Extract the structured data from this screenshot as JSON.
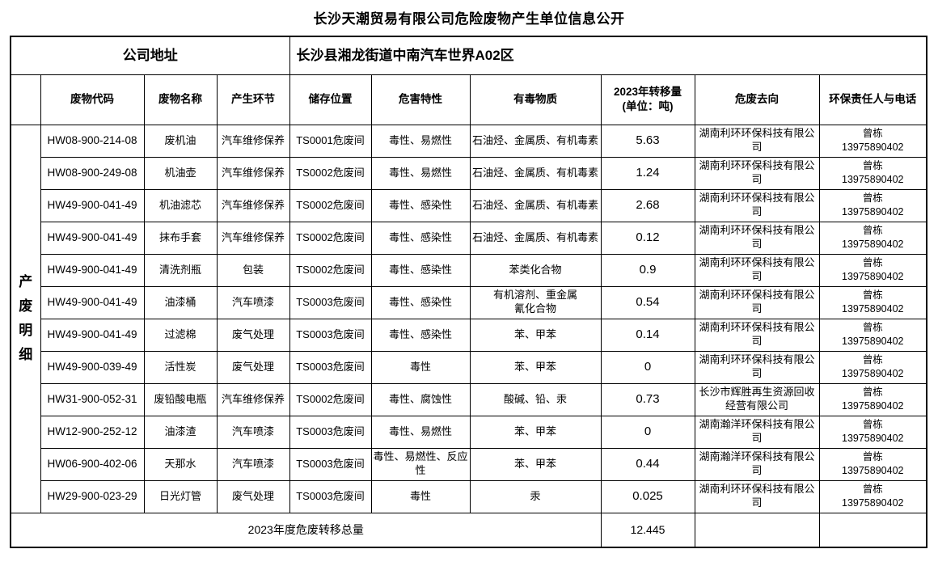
{
  "page": {
    "title": "长沙天潮贸易有限公司危险废物产生单位信息公开"
  },
  "company": {
    "address_label": "公司地址",
    "address_value": "长沙县湘龙街道中南汽车世界A02区"
  },
  "table": {
    "section_label": "产\n废\n明\n细",
    "columns": {
      "code": "废物代码",
      "name": "废物名称",
      "stage": "产生环节",
      "storage": "储存位置",
      "hazard": "危害特性",
      "toxic": "有毒物质",
      "amount": "2023年转移量\n(单位：吨)",
      "destination": "危废去向",
      "contact": "环保责任人与电话"
    },
    "rows": [
      {
        "code": "HW08-900-214-08",
        "name": "废机油",
        "stage": "汽车维修保养",
        "storage": "TS0001危废间",
        "hazard": "毒性、易燃性",
        "toxic": "石油烃、金属质、有机毒素",
        "amount": "5.63",
        "destination": "湖南利环环保科技有限公司",
        "contact": "曾栋\n13975890402"
      },
      {
        "code": "HW08-900-249-08",
        "name": "机油壶",
        "stage": "汽车维修保养",
        "storage": "TS0002危废间",
        "hazard": "毒性、易燃性",
        "toxic": "石油烃、金属质、有机毒素",
        "amount": "1.24",
        "destination": "湖南利环环保科技有限公司",
        "contact": "曾栋\n13975890402"
      },
      {
        "code": "HW49-900-041-49",
        "name": "机油滤芯",
        "stage": "汽车维修保养",
        "storage": "TS0002危废间",
        "hazard": "毒性、感染性",
        "toxic": "石油烃、金属质、有机毒素",
        "amount": "2.68",
        "destination": "湖南利环环保科技有限公司",
        "contact": "曾栋\n13975890402"
      },
      {
        "code": "HW49-900-041-49",
        "name": "抹布手套",
        "stage": "汽车维修保养",
        "storage": "TS0002危废间",
        "hazard": "毒性、感染性",
        "toxic": "石油烃、金属质、有机毒素",
        "amount": "0.12",
        "destination": "湖南利环环保科技有限公司",
        "contact": "曾栋\n13975890402"
      },
      {
        "code": "HW49-900-041-49",
        "name": "清洗剂瓶",
        "stage": "包装",
        "storage": "TS0002危废间",
        "hazard": "毒性、感染性",
        "toxic": "苯类化合物",
        "amount": "0.9",
        "destination": "湖南利环环保科技有限公司",
        "contact": "曾栋\n13975890402"
      },
      {
        "code": "HW49-900-041-49",
        "name": "油漆桶",
        "stage": "汽车喷漆",
        "storage": "TS0003危废间",
        "hazard": "毒性、感染性",
        "toxic": "有机溶剂、重金属\n氰化合物",
        "amount": "0.54",
        "destination": "湖南利环环保科技有限公司",
        "contact": "曾栋\n13975890402"
      },
      {
        "code": "HW49-900-041-49",
        "name": "过滤棉",
        "stage": "废气处理",
        "storage": "TS0003危废间",
        "hazard": "毒性、感染性",
        "toxic": "苯、甲苯",
        "amount": "0.14",
        "destination": "湖南利环环保科技有限公司",
        "contact": "曾栋\n13975890402"
      },
      {
        "code": "HW49-900-039-49",
        "name": "活性炭",
        "stage": "废气处理",
        "storage": "TS0003危废间",
        "hazard": "毒性",
        "toxic": "苯、甲苯",
        "amount": "0",
        "destination": "湖南利环环保科技有限公司",
        "contact": "曾栋\n13975890402"
      },
      {
        "code": "HW31-900-052-31",
        "name": "废铅酸电瓶",
        "stage": "汽车维修保养",
        "storage": "TS0002危废间",
        "hazard": "毒性、腐蚀性",
        "toxic": "酸碱、铅、汞",
        "amount": "0.73",
        "destination": "长沙市辉胜再生资源回收经营有限公司",
        "contact": "曾栋\n13975890402"
      },
      {
        "code": "HW12-900-252-12",
        "name": "油漆渣",
        "stage": "汽车喷漆",
        "storage": "TS0003危废间",
        "hazard": "毒性、易燃性",
        "toxic": "苯、甲苯",
        "amount": "0",
        "destination": "湖南瀚洋环保科技有限公司",
        "contact": "曾栋\n13975890402"
      },
      {
        "code": "HW06-900-402-06",
        "name": "天那水",
        "stage": "汽车喷漆",
        "storage": "TS0003危废间",
        "hazard": "毒性、易燃性、反应性",
        "toxic": "苯、甲苯",
        "amount": "0.44",
        "destination": "湖南瀚洋环保科技有限公司",
        "contact": "曾栋\n13975890402"
      },
      {
        "code": "HW29-900-023-29",
        "name": "日光灯管",
        "stage": "废气处理",
        "storage": "TS0003危废间",
        "hazard": "毒性",
        "toxic": "汞",
        "amount": "0.025",
        "destination": "湖南利环环保科技有限公司",
        "contact": "曾栋\n13975890402"
      }
    ],
    "footer": {
      "label": "2023年度危废转移总量",
      "total": "12.445"
    }
  }
}
